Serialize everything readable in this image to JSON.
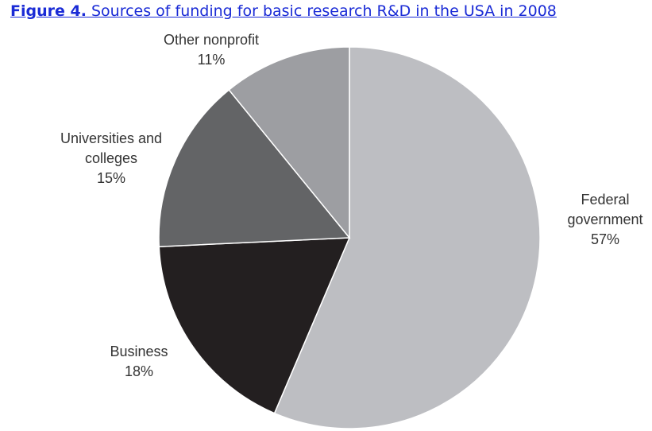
{
  "caption": {
    "figure_label": "Figure 4.",
    "text": "Sources of funding for basic research R&D in the USA in 2008"
  },
  "chart_data": {
    "type": "pie",
    "title": "Sources of funding for basic research R&D in the USA in 2008",
    "slices": [
      {
        "name_lines": [
          "Federal",
          "government"
        ],
        "value": 57,
        "value_label": "57%",
        "color": "#bdbec2"
      },
      {
        "name_lines": [
          "Business"
        ],
        "value": 18,
        "value_label": "18%",
        "color": "#231f20"
      },
      {
        "name_lines": [
          "Universities and",
          "colleges"
        ],
        "value": 15,
        "value_label": "15%",
        "color": "#636466"
      },
      {
        "name_lines": [
          "Other nonprofit"
        ],
        "value": 11,
        "value_label": "11%",
        "color": "#9d9ea2"
      }
    ]
  }
}
